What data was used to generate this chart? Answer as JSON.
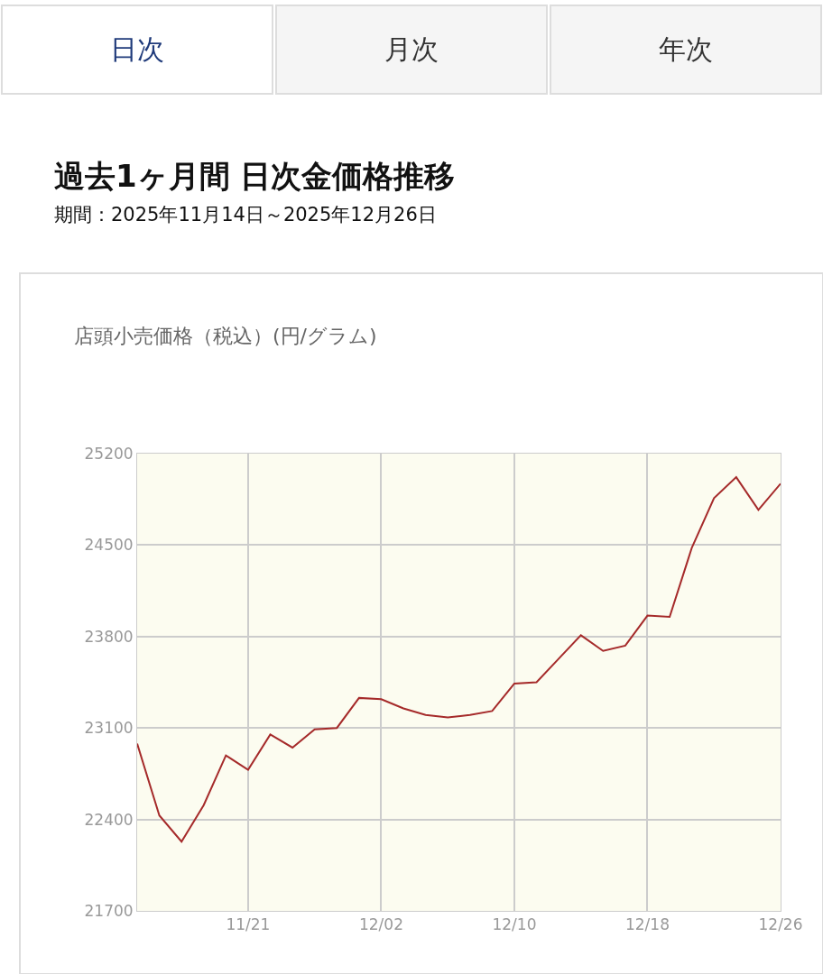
{
  "chart_data": {
    "type": "line",
    "title": "過去1ヶ月間 日次金価格推移",
    "subtitle": "期間：2025年11月14日～2025年12月26日",
    "ylabel": "店頭小売価格（税込）(円/グラム)",
    "annotations": [
      "日次",
      "月次",
      "年次"
    ],
    "categories": [
      null,
      null,
      null,
      null,
      null,
      "11/21",
      null,
      null,
      null,
      null,
      null,
      "12/02",
      null,
      null,
      null,
      null,
      null,
      "12/10",
      null,
      null,
      null,
      null,
      null,
      "12/18",
      null,
      null,
      null,
      null,
      null,
      "12/26"
    ],
    "series": [
      {
        "color": "#a52a2a",
        "values": [
          22980,
          22430,
          22230,
          22510,
          22890,
          22780,
          23050,
          22950,
          23090,
          23100,
          23330,
          23320,
          23250,
          23200,
          23180,
          23200,
          23230,
          23440,
          23450,
          23630,
          23810,
          23690,
          23730,
          23960,
          23950,
          24480,
          24860,
          25020,
          24770,
          24970
        ]
      }
    ],
    "ylim": [
      21700,
      25200
    ],
    "yticks": [
      21700,
      22400,
      23100,
      23800,
      24500,
      25200
    ],
    "grid": true,
    "marker": "none",
    "line_style": "solid"
  }
}
